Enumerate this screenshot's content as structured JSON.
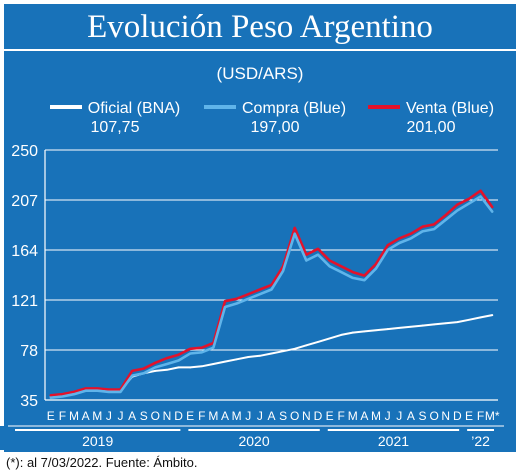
{
  "title": "Evolución Peso Argentino",
  "unit_label": "(USD/ARS)",
  "legend": [
    {
      "name": "Oficial (BNA)",
      "value": "107,75",
      "color": "#ffffff"
    },
    {
      "name": "Compra (Blue)",
      "value": "197,00",
      "color": "#5fb4ea"
    },
    {
      "name": "Venta (Blue)",
      "value": "201,00",
      "color": "#e3122b"
    }
  ],
  "footnote": "(*): al 7/03/2022.  Fuente: Ámbito.",
  "chart_data": {
    "type": "line",
    "ylim": [
      35,
      250
    ],
    "yticks": [
      "250",
      "207",
      "164",
      "121",
      "78",
      "35"
    ],
    "month_labels": [
      "E",
      "F",
      "M",
      "A",
      "M",
      "J",
      "J",
      "A",
      "S",
      "O",
      "N",
      "D",
      "E",
      "F",
      "M",
      "A",
      "M",
      "J",
      "J",
      "A",
      "S",
      "O",
      "N",
      "D",
      "E",
      "F",
      "M",
      "A",
      "M",
      "J",
      "J",
      "A",
      "S",
      "O",
      "N",
      "D",
      "E",
      "F",
      "M*"
    ],
    "year_labels": [
      "2019",
      "2020",
      "2021",
      "’22"
    ],
    "grid": true,
    "legend_position": "top",
    "x": [
      "2019-01",
      "2019-02",
      "2019-03",
      "2019-04",
      "2019-05",
      "2019-06",
      "2019-07",
      "2019-08",
      "2019-09",
      "2019-10",
      "2019-11",
      "2019-12",
      "2020-01",
      "2020-02",
      "2020-03",
      "2020-04",
      "2020-05",
      "2020-06",
      "2020-07",
      "2020-08",
      "2020-09",
      "2020-10",
      "2020-11",
      "2020-12",
      "2021-01",
      "2021-02",
      "2021-03",
      "2021-04",
      "2021-05",
      "2021-06",
      "2021-07",
      "2021-08",
      "2021-09",
      "2021-10",
      "2021-11",
      "2021-12",
      "2022-01",
      "2022-02",
      "2022-03"
    ],
    "series": [
      {
        "name": "Oficial (BNA)",
        "color": "#ffffff",
        "values": [
          38,
          39,
          42,
          44,
          44,
          43,
          43,
          55,
          58,
          60,
          61,
          63,
          63,
          64,
          66,
          68,
          70,
          72,
          73,
          75,
          77,
          79,
          82,
          85,
          88,
          91,
          93,
          94,
          95,
          96,
          97,
          98,
          99,
          100,
          101,
          102,
          104,
          106,
          108
        ]
      },
      {
        "name": "Compra (Blue)",
        "color": "#5fb4ea",
        "values": [
          37,
          38,
          40,
          43,
          43,
          42,
          42,
          56,
          58,
          63,
          66,
          69,
          75,
          76,
          80,
          115,
          118,
          122,
          126,
          130,
          146,
          178,
          155,
          160,
          150,
          145,
          140,
          138,
          148,
          164,
          170,
          174,
          180,
          182,
          190,
          198,
          204,
          210,
          197
        ]
      },
      {
        "name": "Venta (Blue)",
        "color": "#e3122b",
        "values": [
          39,
          40,
          42,
          45,
          45,
          44,
          44,
          60,
          62,
          67,
          71,
          74,
          79,
          80,
          84,
          120,
          122,
          126,
          130,
          134,
          150,
          183,
          160,
          165,
          155,
          150,
          145,
          142,
          152,
          168,
          174,
          178,
          184,
          186,
          194,
          203,
          208,
          215,
          201
        ]
      }
    ]
  }
}
